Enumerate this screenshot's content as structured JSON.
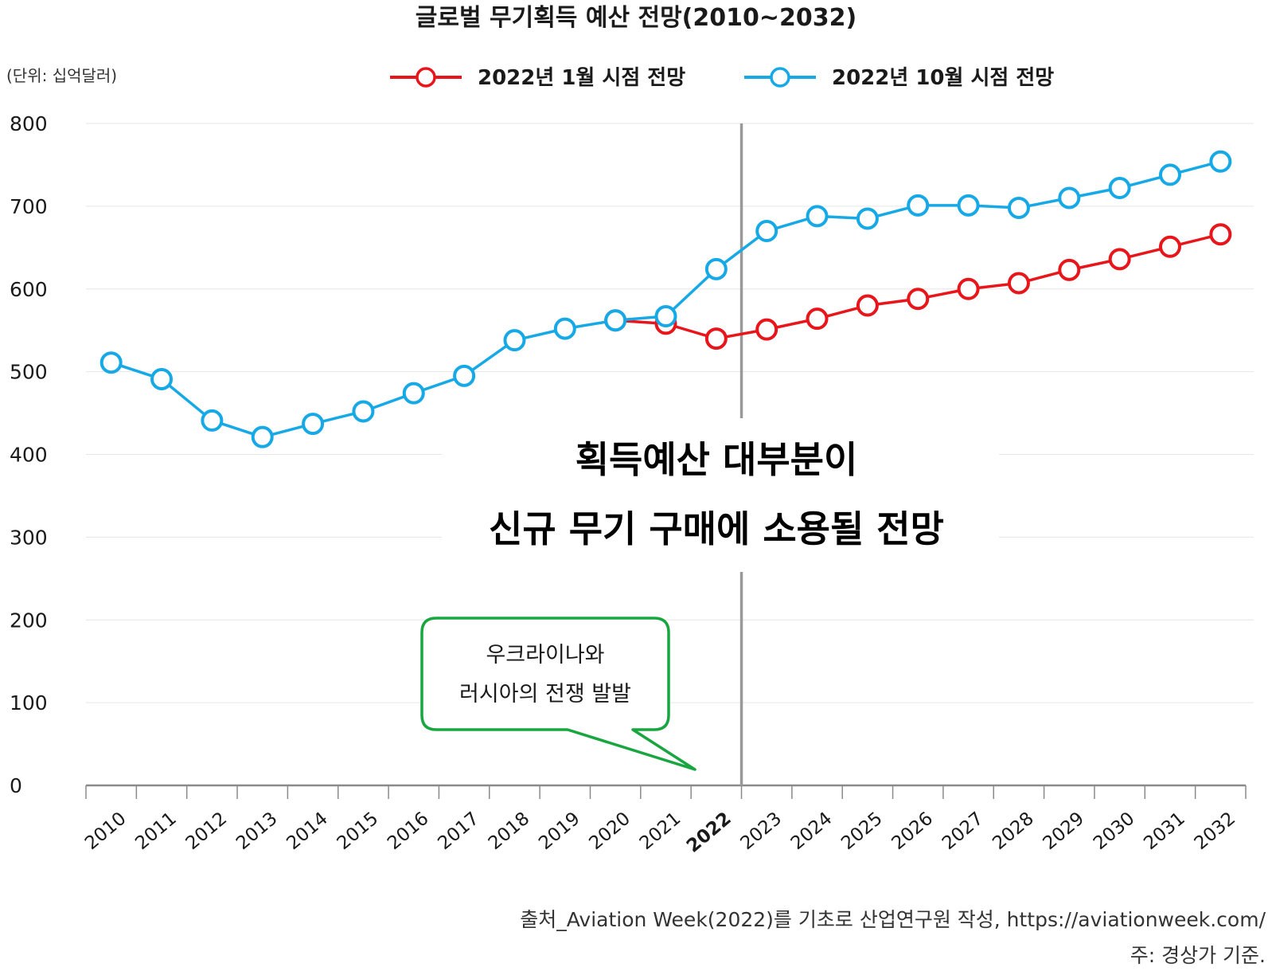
{
  "chart_data": {
    "type": "line",
    "title": "글로벌 무기획득 예산 전망(2010~2032)",
    "unit_label": "(단위: 십억달러)",
    "categories": [
      "2010",
      "2011",
      "2012",
      "2013",
      "2014",
      "2015",
      "2016",
      "2017",
      "2018",
      "2019",
      "2020",
      "2021",
      "2022",
      "2023",
      "2024",
      "2025",
      "2026",
      "2027",
      "2028",
      "2029",
      "2030",
      "2031",
      "2032"
    ],
    "highlight_category": "2022",
    "highlight_color": "#e8161b",
    "ylim": [
      0,
      800
    ],
    "yticks": [
      "0",
      "100",
      "200",
      "300",
      "400",
      "500",
      "600",
      "700",
      "800"
    ],
    "grid": true,
    "legend_position": "top",
    "series": [
      {
        "name": "2022년 1월 시점 전망",
        "color": "#e8161b",
        "start_index": 10,
        "values": [
          null,
          null,
          null,
          null,
          null,
          null,
          null,
          null,
          null,
          null,
          562,
          558,
          540,
          551,
          564,
          580,
          588,
          600,
          607,
          623,
          636,
          651,
          666
        ]
      },
      {
        "name": "2022년 10월 시점 전망",
        "color": "#16a9e6",
        "start_index": 0,
        "values": [
          511,
          491,
          441,
          421,
          437,
          452,
          474,
          495,
          538,
          552,
          562,
          567,
          624,
          670,
          688,
          685,
          701,
          701,
          698,
          710,
          722,
          738,
          754
        ]
      }
    ],
    "annotation_main": [
      "획득예산 대부분이",
      "신규 무기 구매에 소용될 전망"
    ],
    "callout": [
      "우크라이나와",
      "러시아의 전쟁 발발"
    ],
    "callout_color": "#19a540",
    "divider_color": "#999999",
    "source": "출처_Aviation Week(2022)를 기초로 산업연구원 작성, https://aviationweek.com/",
    "note": "주: 경상가 기준."
  }
}
